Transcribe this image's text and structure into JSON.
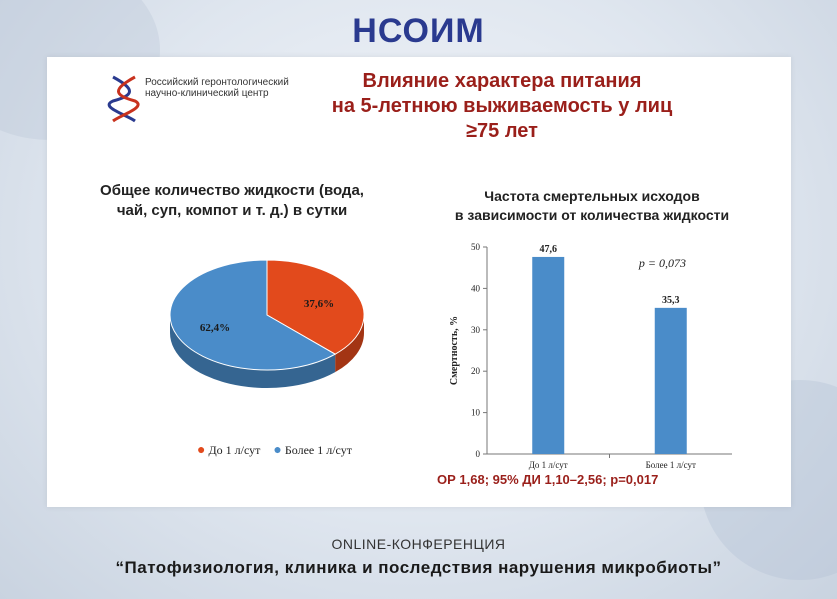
{
  "header": {
    "logo_text": "НСОИМ"
  },
  "organization": {
    "name": "Российский геронтологический научно-клинический центр"
  },
  "slide": {
    "title_line1": "Влияние характера питания",
    "title_line2": "на 5-летнюю выживаемость у лиц",
    "title_line3": "≥75 лет"
  },
  "colors": {
    "red": "#e24a1c",
    "blue": "#4a8cc9",
    "title": "#9a1f1a"
  },
  "chart_data": [
    {
      "type": "pie",
      "title_line1": "Общее количество жидкости (вода,",
      "title_line2": "чай, суп, компот и т. д.) в сутки",
      "slices": [
        {
          "name": "До 1 л/сут",
          "value": 37.6,
          "label": "37,6%",
          "color": "#e24a1c"
        },
        {
          "name": "Более 1 л/сут",
          "value": 62.4,
          "label": "62,4%",
          "color": "#4a8cc9"
        }
      ],
      "legend": "bottom"
    },
    {
      "type": "bar",
      "title_line1": "Частота смертельных исходов",
      "title_line2": "в зависимости от количества жидкости",
      "categories": [
        "До 1 л/сут",
        "Более 1 л/сут"
      ],
      "values": [
        47.6,
        35.3
      ],
      "value_labels": [
        "47,6",
        "35,3"
      ],
      "ylabel": "Смертность, %",
      "ylim": [
        0,
        50
      ],
      "yticks": [
        "0",
        "10",
        "20",
        "30",
        "40",
        "50"
      ],
      "annotation": "p = 0,073",
      "color": "#4a8cc9"
    }
  ],
  "stat_line": "ОР 1,68; 95% ДИ 1,10–2,56; p=0,017",
  "footer": {
    "line1": "ONLINE-КОНФЕРЕНЦИЯ",
    "line2": "“Патофизиология, клиника и последствия нарушения микробиоты”"
  }
}
